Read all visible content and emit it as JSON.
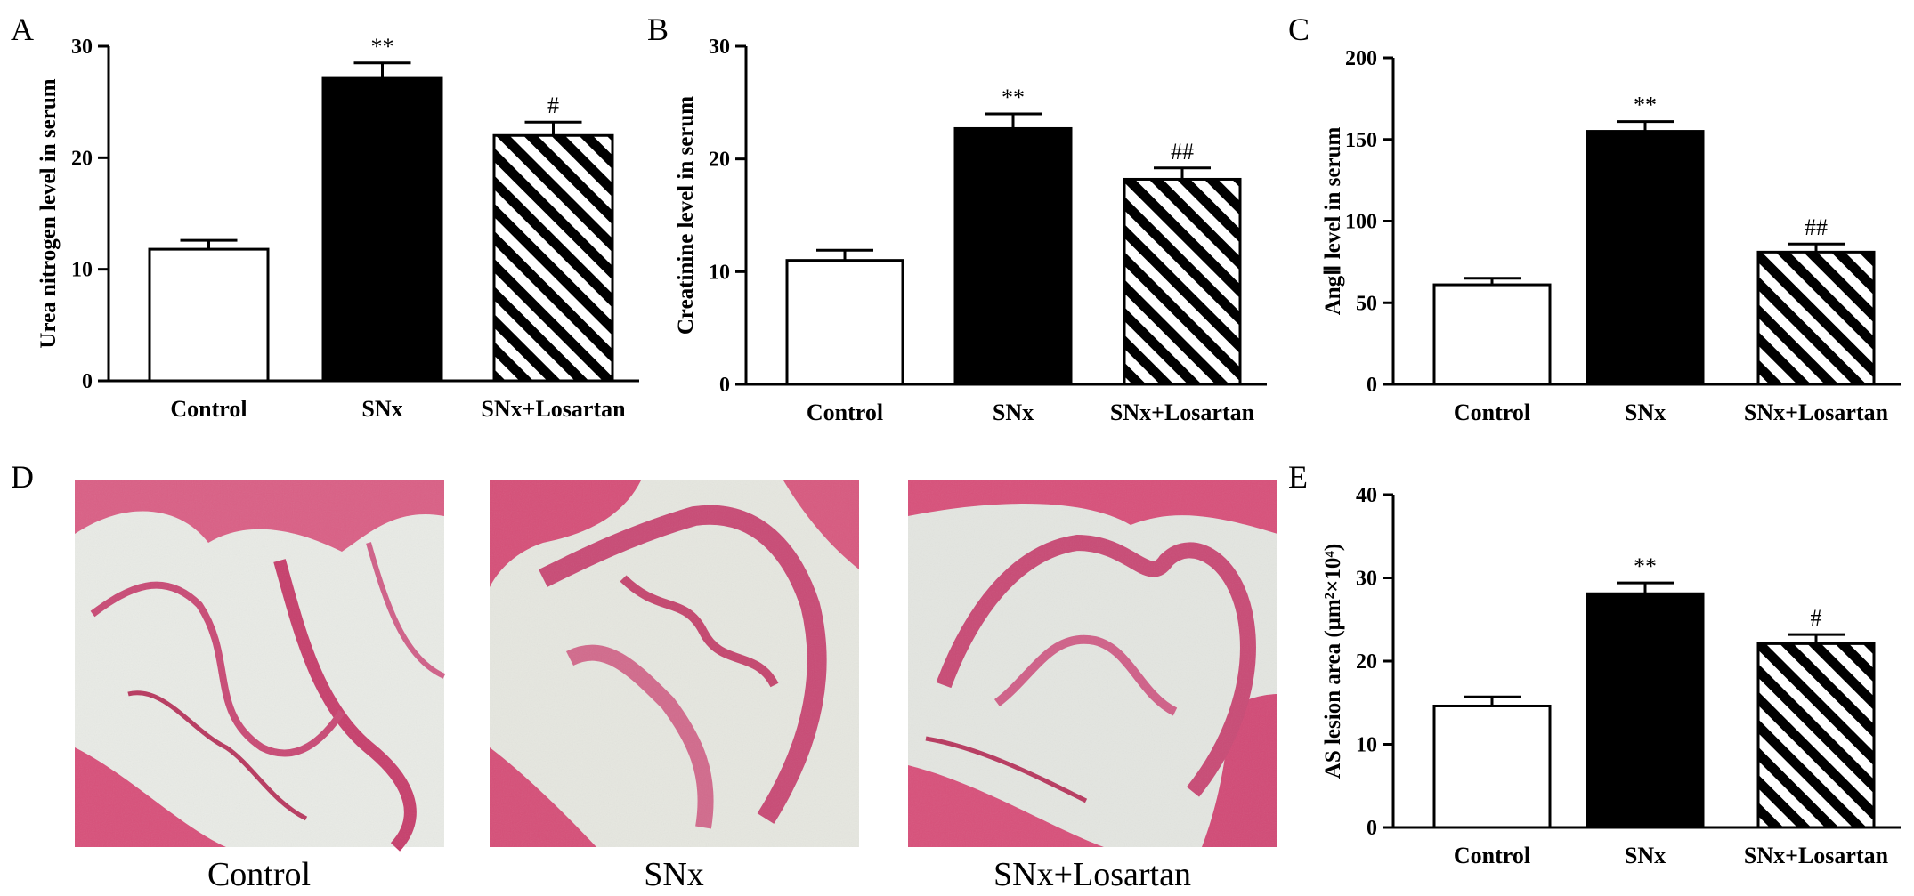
{
  "panels": {
    "A": "A",
    "B": "B",
    "C": "C",
    "D": "D",
    "E": "E"
  },
  "chart_data": [
    {
      "panel": "A",
      "type": "bar",
      "categories": [
        "Control",
        "SNx",
        "SNx+Losartan"
      ],
      "values": [
        11.8,
        27.2,
        22.0
      ],
      "errors": [
        0.8,
        1.3,
        1.2
      ],
      "significance": [
        "",
        "**",
        "#"
      ],
      "ylabel": "Urea nitrogen level in serum",
      "ylim": [
        0,
        30
      ],
      "yticks": [
        0,
        10,
        20,
        30
      ],
      "fills": [
        "white",
        "black",
        "hatch"
      ]
    },
    {
      "panel": "B",
      "type": "bar",
      "categories": [
        "Control",
        "SNx",
        "SNx+Losartan"
      ],
      "values": [
        11.0,
        22.7,
        18.2
      ],
      "errors": [
        0.9,
        1.3,
        1.0
      ],
      "significance": [
        "",
        "**",
        "##"
      ],
      "ylabel": "Creatinine level in serum",
      "ylim": [
        0,
        30
      ],
      "yticks": [
        0,
        10,
        20,
        30
      ],
      "fills": [
        "white",
        "black",
        "hatch"
      ]
    },
    {
      "panel": "C",
      "type": "bar",
      "categories": [
        "Control",
        "SNx",
        "SNx+Losartan"
      ],
      "values": [
        61,
        155,
        81
      ],
      "errors": [
        4,
        6,
        5
      ],
      "significance": [
        "",
        "**",
        "##"
      ],
      "ylabel": "AngⅡ level in serum",
      "ylim": [
        0,
        200
      ],
      "yticks": [
        0,
        50,
        100,
        150,
        200
      ],
      "fills": [
        "white",
        "black",
        "hatch"
      ]
    },
    {
      "panel": "E",
      "type": "bar",
      "categories": [
        "Control",
        "SNx",
        "SNx+Losartan"
      ],
      "values": [
        14.6,
        28.1,
        22.1
      ],
      "errors": [
        1.1,
        1.3,
        1.1
      ],
      "significance": [
        "",
        "**",
        "#"
      ],
      "ylabel": "AS lesion area (μm²×10⁴)",
      "ylim": [
        0,
        40
      ],
      "yticks": [
        0,
        10,
        20,
        30,
        40
      ],
      "fills": [
        "white",
        "black",
        "hatch"
      ]
    }
  ],
  "images": {
    "captions": [
      "Control",
      "SNx",
      "SNx+Losartan"
    ],
    "tissue_color": "#d8507a",
    "lumen_color": "#e9ebe6"
  }
}
